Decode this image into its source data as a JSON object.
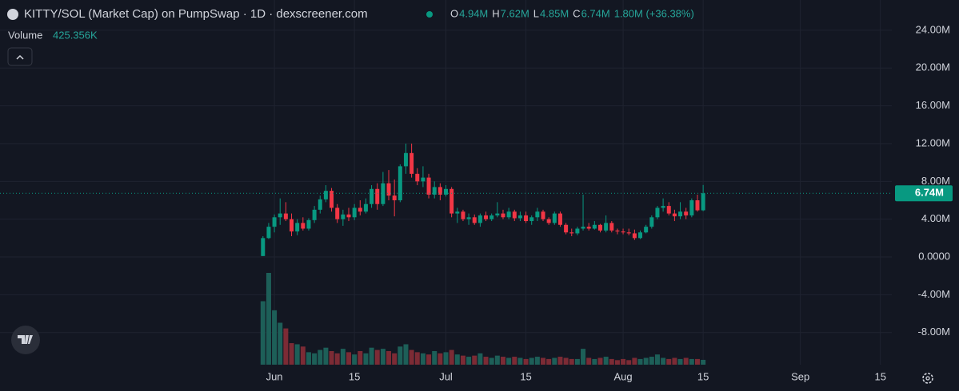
{
  "chart_data": {
    "type": "candlestick",
    "title": "KITTY/SOL (Market Cap) on PumpSwap · 1D · dexscreener.com",
    "ohlc_legend": [
      {
        "key": "O",
        "value": "4.94M"
      },
      {
        "key": "H",
        "value": "7.62M"
      },
      {
        "key": "L",
        "value": "4.85M"
      },
      {
        "key": "C",
        "value": "6.74M"
      }
    ],
    "change": "1.80M (+36.38%)",
    "volume_label": "Volume",
    "volume_value": "425.356K",
    "last_label": "6.74M",
    "up_color": "#089981",
    "down_color": "#f23645",
    "up_volume_color": "#1d5f58",
    "down_volume_color": "#7c2b35",
    "grid": true,
    "x": [
      "05-30",
      "05-31",
      "06-01",
      "06-02",
      "06-03",
      "06-04",
      "06-05",
      "06-06",
      "06-07",
      "06-08",
      "06-09",
      "06-10",
      "06-11",
      "06-12",
      "06-13",
      "06-14",
      "06-15",
      "06-16",
      "06-17",
      "06-18",
      "06-19",
      "06-20",
      "06-21",
      "06-22",
      "06-23",
      "06-24",
      "06-25",
      "06-26",
      "06-27",
      "06-28",
      "06-29",
      "06-30",
      "07-01",
      "07-02",
      "07-03",
      "07-04",
      "07-05",
      "07-06",
      "07-07",
      "07-08",
      "07-09",
      "07-10",
      "07-11",
      "07-12",
      "07-13",
      "07-14",
      "07-15",
      "07-16",
      "07-17",
      "07-18",
      "07-19",
      "07-20",
      "07-21",
      "07-22",
      "07-23",
      "07-24",
      "07-25",
      "07-26",
      "07-27",
      "07-28",
      "07-29",
      "07-30",
      "07-31",
      "08-01",
      "08-02",
      "08-03",
      "08-04",
      "08-05",
      "08-06",
      "08-07",
      "08-08",
      "08-09",
      "08-10",
      "08-11",
      "08-12",
      "08-13",
      "08-14",
      "08-15"
    ],
    "open": [
      0.1,
      2.0,
      3.2,
      4.2,
      4.6,
      4.0,
      2.7,
      3.6,
      3.0,
      3.9,
      5.0,
      6.1,
      7.0,
      5.2,
      4.0,
      4.5,
      4.2,
      5.2,
      4.8,
      5.6,
      7.2,
      5.6,
      7.8,
      6.5,
      6.0,
      9.6,
      11.0,
      8.8,
      8.0,
      8.4,
      6.6,
      7.4,
      6.6,
      7.2,
      4.6,
      4.8,
      4.0,
      4.2,
      3.6,
      4.4,
      4.0,
      4.4,
      4.6,
      4.2,
      4.8,
      4.1,
      4.4,
      3.8,
      4.2,
      4.8,
      4.0,
      3.6,
      4.6,
      3.4,
      2.6,
      2.5,
      3.0,
      3.2,
      3.0,
      3.4,
      2.8,
      3.6,
      2.8,
      2.7,
      2.6,
      2.5,
      2.0,
      2.6,
      3.2,
      4.2,
      5.2,
      5.4,
      4.6,
      4.3,
      4.8,
      4.4,
      6.0,
      4.94
    ],
    "high": [
      2.2,
      3.6,
      4.5,
      6.2,
      5.8,
      4.6,
      4.0,
      4.2,
      4.1,
      5.4,
      6.5,
      7.6,
      7.3,
      5.6,
      5.0,
      5.2,
      5.6,
      6.0,
      6.2,
      7.6,
      7.8,
      9.0,
      9.2,
      8.2,
      9.8,
      12.0,
      12.0,
      9.4,
      9.6,
      8.8,
      8.0,
      7.8,
      7.6,
      7.4,
      5.2,
      5.0,
      4.6,
      4.5,
      4.6,
      4.8,
      4.6,
      5.8,
      5.0,
      5.2,
      5.0,
      4.8,
      4.8,
      4.4,
      5.2,
      5.0,
      4.2,
      4.8,
      4.8,
      3.6,
      3.0,
      3.2,
      6.6,
      3.6,
      3.8,
      3.5,
      4.4,
      3.8,
      3.0,
      3.0,
      3.0,
      2.9,
      2.8,
      3.4,
      4.4,
      5.4,
      6.2,
      5.8,
      5.0,
      5.8,
      5.2,
      6.2,
      6.6,
      7.62
    ],
    "low": [
      0.1,
      1.9,
      2.6,
      3.4,
      3.8,
      2.2,
      2.3,
      2.8,
      2.8,
      3.6,
      4.6,
      5.8,
      4.8,
      3.6,
      3.3,
      3.8,
      3.9,
      4.4,
      4.6,
      5.2,
      5.0,
      5.4,
      6.0,
      4.3,
      5.8,
      8.8,
      8.4,
      7.6,
      7.4,
      6.2,
      6.2,
      6.0,
      6.4,
      4.2,
      3.6,
      3.8,
      3.4,
      3.4,
      3.2,
      3.8,
      3.8,
      4.2,
      4.0,
      4.0,
      3.8,
      3.8,
      3.6,
      3.4,
      3.8,
      3.8,
      3.4,
      3.4,
      3.2,
      2.4,
      2.2,
      2.3,
      2.8,
      2.8,
      2.9,
      2.6,
      2.6,
      2.6,
      2.4,
      2.4,
      2.3,
      1.8,
      1.9,
      2.5,
      3.0,
      4.0,
      4.8,
      4.4,
      3.8,
      4.0,
      4.0,
      4.2,
      4.8,
      4.85
    ],
    "close": [
      2.0,
      3.2,
      4.2,
      4.6,
      4.0,
      2.7,
      3.6,
      3.0,
      3.9,
      5.0,
      6.1,
      7.0,
      5.2,
      4.0,
      4.5,
      4.2,
      5.2,
      4.8,
      5.6,
      7.2,
      5.6,
      7.8,
      6.5,
      6.0,
      9.6,
      11.0,
      8.8,
      8.0,
      8.4,
      6.6,
      7.4,
      6.6,
      7.2,
      4.6,
      4.8,
      4.0,
      4.2,
      3.6,
      4.4,
      4.0,
      4.4,
      4.6,
      4.2,
      4.8,
      4.1,
      4.4,
      3.8,
      4.2,
      4.8,
      4.0,
      3.6,
      4.6,
      3.4,
      2.6,
      2.5,
      3.0,
      3.2,
      3.0,
      3.4,
      2.8,
      3.6,
      2.8,
      2.7,
      2.6,
      2.5,
      2.0,
      2.6,
      3.2,
      4.2,
      5.2,
      5.4,
      4.6,
      4.3,
      4.8,
      4.4,
      6.0,
      4.94,
      6.74
    ],
    "volume": [
      5.6,
      8.1,
      4.8,
      3.7,
      3.2,
      1.9,
      1.8,
      1.6,
      1.1,
      1.0,
      1.3,
      1.5,
      1.2,
      1.0,
      1.4,
      1.1,
      0.9,
      1.2,
      1.0,
      1.5,
      1.3,
      1.4,
      1.2,
      1.0,
      1.6,
      1.8,
      1.3,
      1.1,
      1.0,
      0.9,
      1.2,
      1.0,
      1.1,
      1.3,
      0.9,
      0.8,
      0.7,
      0.8,
      1.0,
      0.7,
      0.6,
      0.8,
      0.7,
      0.6,
      0.7,
      0.6,
      0.5,
      0.6,
      0.7,
      0.6,
      0.5,
      0.6,
      0.7,
      0.6,
      0.5,
      0.5,
      1.4,
      0.6,
      0.5,
      0.6,
      0.7,
      0.5,
      0.4,
      0.5,
      0.4,
      0.6,
      0.5,
      0.6,
      0.7,
      0.9,
      0.6,
      0.5,
      0.6,
      0.5,
      0.6,
      0.5,
      0.5,
      0.425356
    ],
    "xlim": [
      "04-14",
      "09-17"
    ],
    "xticks": [
      {
        "value": "06-01",
        "label": "Jun"
      },
      {
        "value": "06-15",
        "label": "15"
      },
      {
        "value": "07-01",
        "label": "Jul"
      },
      {
        "value": "07-15",
        "label": "15"
      },
      {
        "value": "08-01",
        "label": "Aug"
      },
      {
        "value": "08-15",
        "label": "15"
      },
      {
        "value": "09-01",
        "label": "Sep"
      },
      {
        "value": "09-15",
        "label": "15"
      }
    ],
    "ylim": [
      -11.4,
      27.2
    ],
    "yticks": [
      {
        "value": 24,
        "label": "24.00M"
      },
      {
        "value": 20,
        "label": "20.00M"
      },
      {
        "value": 16,
        "label": "16.00M"
      },
      {
        "value": 12,
        "label": "12.00M"
      },
      {
        "value": 8,
        "label": "8.00M"
      },
      {
        "value": 4,
        "label": "4.00M"
      },
      {
        "value": 0,
        "label": "0.0000"
      },
      {
        "value": -4,
        "label": "-4.00M"
      },
      {
        "value": -8,
        "label": "-8.00M"
      }
    ]
  }
}
